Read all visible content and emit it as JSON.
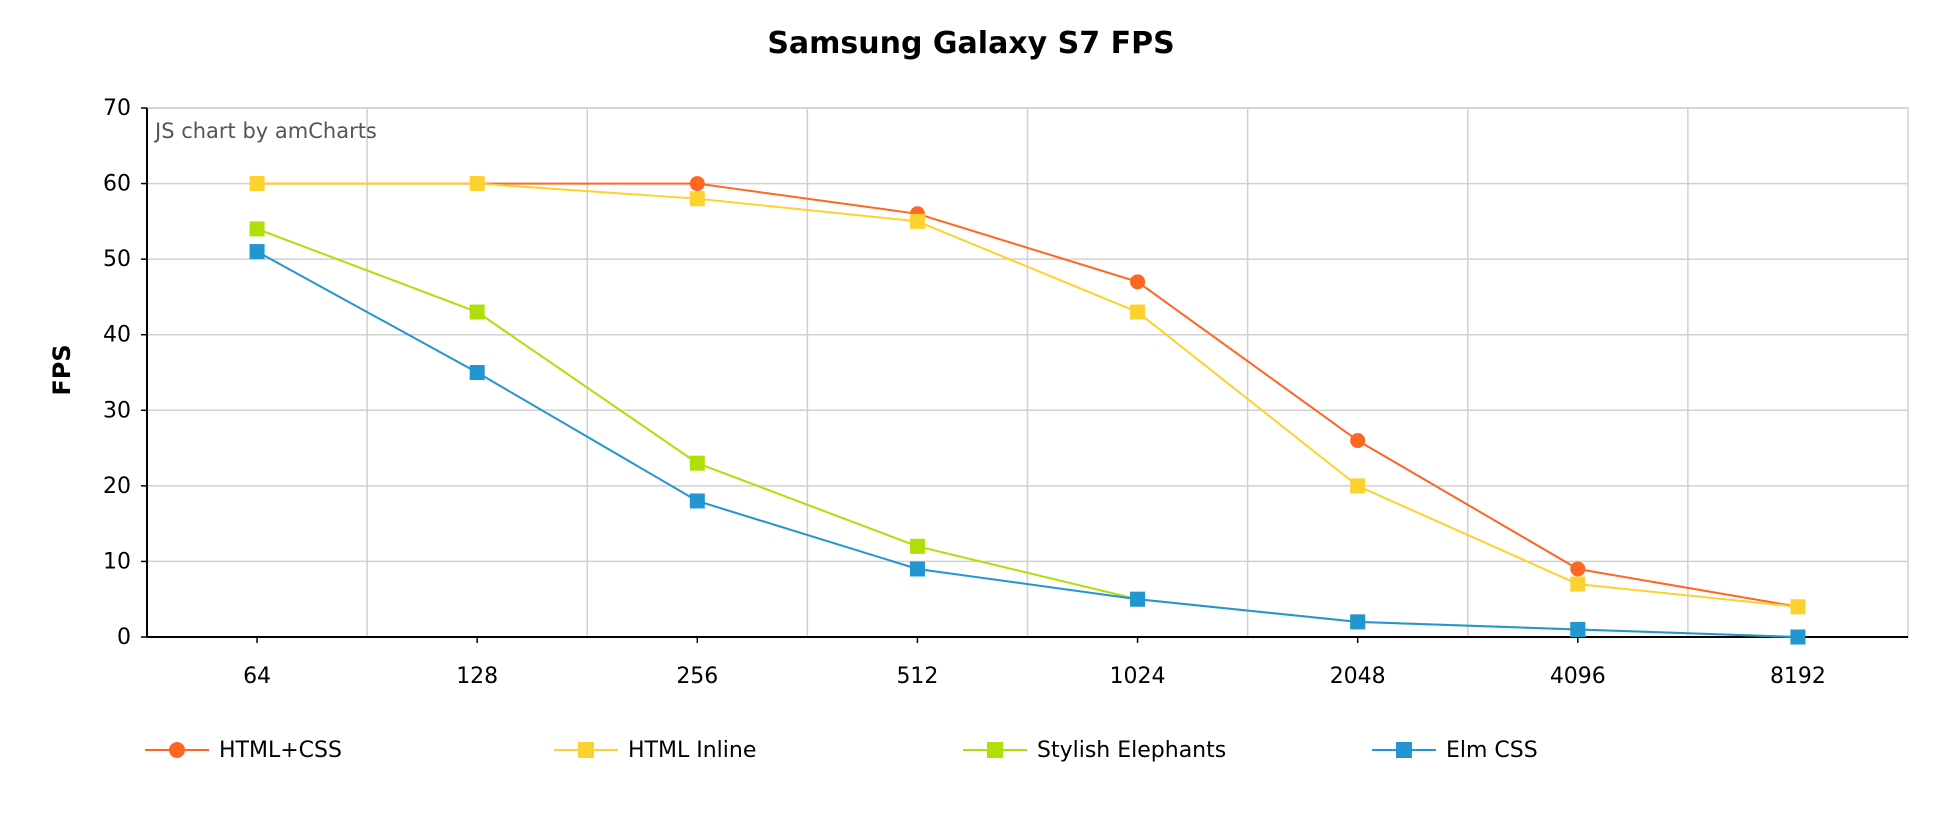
{
  "chart_data": {
    "type": "line",
    "title": "Samsung Galaxy S7 FPS",
    "xlabel": "",
    "ylabel": "FPS",
    "categories": [
      "64",
      "128",
      "256",
      "512",
      "1024",
      "2048",
      "4096",
      "8192"
    ],
    "ylim": [
      0,
      70
    ],
    "yticks": [
      0,
      10,
      20,
      30,
      40,
      50,
      60,
      70
    ],
    "grid": true,
    "legend_position": "bottom",
    "credit": "JS chart by amCharts",
    "series": [
      {
        "name": "HTML+CSS",
        "color": "#ff6622",
        "marker": "circle",
        "values": [
          60,
          60,
          60,
          56,
          47,
          26,
          9,
          4
        ]
      },
      {
        "name": "HTML Inline",
        "color": "#fcd22e",
        "marker": "square",
        "values": [
          60,
          60,
          58,
          55,
          43,
          20,
          7,
          4
        ]
      },
      {
        "name": "Stylish Elephants",
        "color": "#b0de09",
        "marker": "square",
        "values": [
          54,
          43,
          23,
          12,
          5,
          2,
          1,
          0
        ]
      },
      {
        "name": "Elm CSS",
        "color": "#2196d3",
        "marker": "square",
        "values": [
          51,
          35,
          18,
          9,
          5,
          2,
          1,
          0
        ]
      }
    ]
  }
}
